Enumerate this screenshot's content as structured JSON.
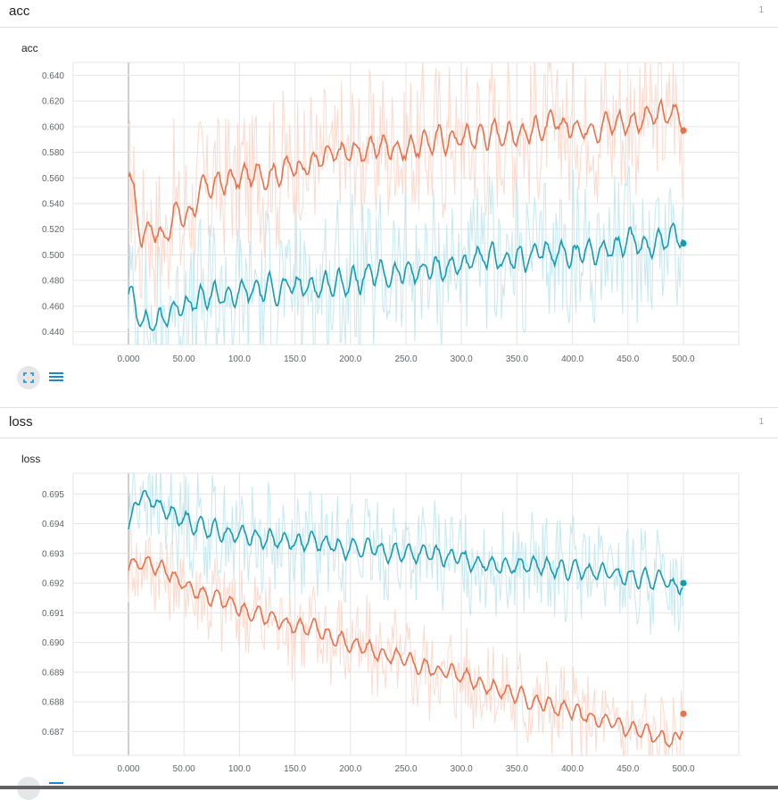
{
  "sections": [
    {
      "title": "acc",
      "count": "1",
      "card_title": "acc"
    },
    {
      "title": "loss",
      "count": "1",
      "card_title": "loss"
    }
  ],
  "icons": {
    "fit": "fit-domain-icon",
    "data": "toggle-data-table-icon"
  },
  "colors": {
    "orange": "#e8704a",
    "orange_raw": "#fbd6c9",
    "teal": "#159bb0",
    "teal_raw": "#bfe6ed",
    "grid": "#e4e4e4"
  },
  "chart_data": [
    {
      "type": "line",
      "title": "acc",
      "xlim": [
        0,
        500
      ],
      "ylim": [
        0.43,
        0.65
      ],
      "xticks": [
        "0.000",
        "50.00",
        "100.0",
        "150.0",
        "200.0",
        "250.0",
        "300.0",
        "350.0",
        "400.0",
        "450.0",
        "500.0"
      ],
      "yticks": [
        "0.640",
        "0.620",
        "0.600",
        "0.580",
        "0.560",
        "0.540",
        "0.520",
        "0.500",
        "0.480",
        "0.460",
        "0.440"
      ],
      "series": [
        {
          "color": "orange",
          "smoothed": {
            "x": [
              0,
              5,
              10,
              15,
              20,
              25,
              30,
              40,
              50,
              60,
              75,
              100,
              125,
              150,
              175,
              200,
              225,
              250,
              275,
              300,
              325,
              350,
              375,
              400,
              425,
              450,
              475,
              495,
              500
            ],
            "y": [
              0.558,
              0.53,
              0.505,
              0.52,
              0.53,
              0.515,
              0.51,
              0.54,
              0.525,
              0.548,
              0.555,
              0.56,
              0.565,
              0.57,
              0.575,
              0.58,
              0.585,
              0.584,
              0.59,
              0.592,
              0.595,
              0.597,
              0.6,
              0.6,
              0.603,
              0.605,
              0.608,
              0.61,
              0.597
            ]
          },
          "final": 0.597
        },
        {
          "color": "teal",
          "smoothed": {
            "x": [
              0,
              5,
              10,
              15,
              20,
              25,
              30,
              40,
              50,
              60,
              75,
              100,
              125,
              150,
              175,
              200,
              225,
              250,
              275,
              300,
              325,
              350,
              375,
              400,
              425,
              450,
              475,
              495,
              500
            ],
            "y": [
              0.468,
              0.455,
              0.45,
              0.448,
              0.45,
              0.445,
              0.452,
              0.46,
              0.465,
              0.463,
              0.468,
              0.47,
              0.474,
              0.474,
              0.478,
              0.48,
              0.484,
              0.486,
              0.49,
              0.493,
              0.496,
              0.497,
              0.5,
              0.502,
              0.505,
              0.508,
              0.51,
              0.52,
              0.509
            ]
          },
          "final": 0.509
        }
      ]
    },
    {
      "type": "line",
      "title": "loss",
      "xlim": [
        0,
        500
      ],
      "ylim": [
        0.6862,
        0.6957
      ],
      "xticks": [
        "0.000",
        "50.00",
        "100.0",
        "150.0",
        "200.0",
        "250.0",
        "300.0",
        "350.0",
        "400.0",
        "450.0",
        "500.0"
      ],
      "yticks": [
        "0.695",
        "0.694",
        "0.693",
        "0.692",
        "0.691",
        "0.690",
        "0.689",
        "0.688",
        "0.687"
      ],
      "series": [
        {
          "color": "orange",
          "smoothed": {
            "x": [
              0,
              5,
              10,
              20,
              30,
              40,
              50,
              75,
              100,
              125,
              150,
              175,
              200,
              225,
              250,
              275,
              300,
              325,
              350,
              375,
              400,
              425,
              450,
              475,
              490,
              500
            ],
            "y": [
              0.6925,
              0.6927,
              0.6928,
              0.6926,
              0.6925,
              0.6921,
              0.6919,
              0.6915,
              0.6911,
              0.6908,
              0.6906,
              0.6903,
              0.6899,
              0.6896,
              0.6893,
              0.6891,
              0.6889,
              0.6885,
              0.6882,
              0.6879,
              0.6876,
              0.6873,
              0.6871,
              0.6868,
              0.6866,
              0.6876
            ]
          },
          "final": 0.6876
        },
        {
          "color": "teal",
          "smoothed": {
            "x": [
              0,
              5,
              10,
              20,
              30,
              40,
              50,
              75,
              100,
              125,
              150,
              175,
              200,
              225,
              250,
              275,
              300,
              325,
              350,
              375,
              400,
              425,
              450,
              475,
              490,
              500
            ],
            "y": [
              0.6937,
              0.6952,
              0.6951,
              0.6947,
              0.6944,
              0.6943,
              0.6941,
              0.6938,
              0.6936,
              0.6935,
              0.6934,
              0.6933,
              0.6932,
              0.6931,
              0.693,
              0.6929,
              0.6928,
              0.6927,
              0.6926,
              0.6925,
              0.6924,
              0.6923,
              0.6922,
              0.6921,
              0.6919,
              0.692
            ]
          },
          "final": 0.692
        }
      ]
    }
  ]
}
